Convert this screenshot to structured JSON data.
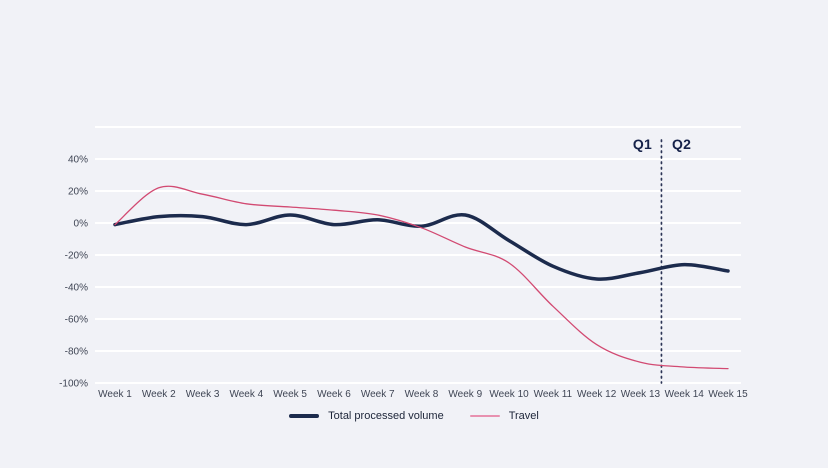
{
  "page": {
    "background_color": "#f1f2f7"
  },
  "chart_data": {
    "type": "line",
    "categories": [
      "Week 1",
      "Week 2",
      "Week 3",
      "Week 4",
      "Week 5",
      "Week 6",
      "Week 7",
      "Week 8",
      "Week 9",
      "Week 10",
      "Week 11",
      "Week 12",
      "Week 13",
      "Week 14",
      "Week 15"
    ],
    "xlabel": "",
    "ylabel": "",
    "y_axis": {
      "unit": "%",
      "min": -100,
      "max": 60,
      "gridline_step": 20,
      "grid": true,
      "gridline_color": "#ffffff",
      "gridlines": [
        {
          "value": 60,
          "label": ""
        },
        {
          "value": 40,
          "label": "40%"
        },
        {
          "value": 20,
          "label": "20%"
        },
        {
          "value": 0,
          "label": "0%"
        },
        {
          "value": -20,
          "label": "-20%"
        },
        {
          "value": -40,
          "label": "-40%"
        },
        {
          "value": -60,
          "label": "-60%"
        },
        {
          "value": -80,
          "label": "-80%"
        },
        {
          "value": -100,
          "label": "-100%"
        }
      ]
    },
    "series": [
      {
        "name": "Total processed volume",
        "color": "#1c2b4d",
        "stroke_width": 3.5,
        "values": [
          -1,
          4,
          4,
          -1,
          5,
          -1,
          2,
          -2,
          5,
          -11,
          -27,
          -35,
          -31,
          -26,
          -30
        ]
      },
      {
        "name": "Travel",
        "color": "#d24a72",
        "stroke_width": 1.3,
        "values": [
          -1,
          22,
          18,
          12,
          10,
          8,
          5,
          -3,
          -15,
          -25,
          -52,
          -76,
          -87,
          -90,
          -91
        ]
      }
    ],
    "annotation": {
      "left_label": "Q1",
      "right_label": "Q2",
      "x_position_week": 13.48,
      "line_style": "dotted",
      "color": "#2b3455"
    },
    "legend": [
      {
        "label": "Total processed volume",
        "color": "#1c2b4d"
      },
      {
        "label": "Travel",
        "color": "#e891b0"
      }
    ],
    "legend_position": "bottom-center"
  }
}
